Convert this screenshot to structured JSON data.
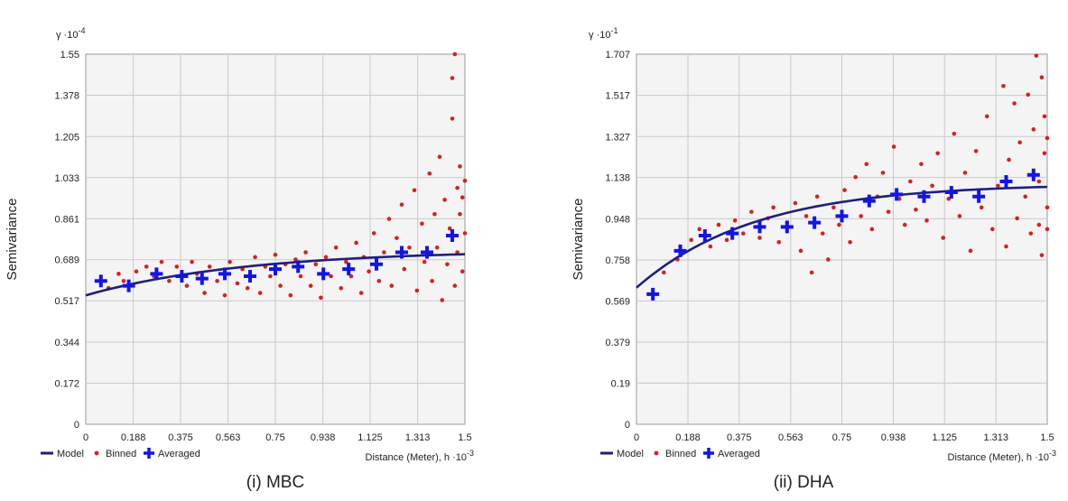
{
  "captions": [
    "(i) MBC",
    "(ii) DHA"
  ],
  "colors": {
    "model": "#1f1f7a",
    "binned": "#d62020",
    "averaged": "#1414e6",
    "plot_bg": "#f4f4f4",
    "grid": "#c9c9c9"
  },
  "chart_data": [
    {
      "type": "scatter",
      "ylabel": "Semivariance",
      "y_multiplier_base": "γ ·10",
      "y_multiplier_exp": "-4",
      "x_multiplier_base": "Distance (Meter), h ·10",
      "x_multiplier_exp": "-3",
      "legend": [
        "Model",
        "Binned",
        "Averaged"
      ],
      "legend_position": "bottom-left",
      "grid": true,
      "xlim": [
        0,
        1.5
      ],
      "ylim": [
        0,
        1.55
      ],
      "xticks": [
        "0",
        "0.188",
        "0.375",
        "0.563",
        "0.75",
        "0.938",
        "1.125",
        "1.313",
        "1.5"
      ],
      "yticks": [
        "0",
        "0.172",
        "0.344",
        "0.517",
        "0.689",
        "0.861",
        "1.033",
        "1.205",
        "1.378",
        "1.55"
      ],
      "model": {
        "nugget": 0.54,
        "sill": 0.73,
        "range": 1.9
      },
      "averaged": [
        [
          0.06,
          0.6
        ],
        [
          0.17,
          0.58
        ],
        [
          0.28,
          0.63
        ],
        [
          0.38,
          0.62
        ],
        [
          0.46,
          0.61
        ],
        [
          0.55,
          0.63
        ],
        [
          0.65,
          0.62
        ],
        [
          0.75,
          0.65
        ],
        [
          0.84,
          0.66
        ],
        [
          0.94,
          0.63
        ],
        [
          1.04,
          0.65
        ],
        [
          1.15,
          0.67
        ],
        [
          1.25,
          0.72
        ],
        [
          1.35,
          0.72
        ],
        [
          1.45,
          0.79
        ]
      ],
      "binned": [
        [
          0.09,
          0.57
        ],
        [
          0.13,
          0.63
        ],
        [
          0.15,
          0.6
        ],
        [
          0.2,
          0.64
        ],
        [
          0.24,
          0.66
        ],
        [
          0.27,
          0.62
        ],
        [
          0.3,
          0.68
        ],
        [
          0.33,
          0.6
        ],
        [
          0.36,
          0.66
        ],
        [
          0.4,
          0.58
        ],
        [
          0.42,
          0.68
        ],
        [
          0.44,
          0.63
        ],
        [
          0.47,
          0.55
        ],
        [
          0.49,
          0.66
        ],
        [
          0.52,
          0.6
        ],
        [
          0.55,
          0.54
        ],
        [
          0.57,
          0.68
        ],
        [
          0.6,
          0.59
        ],
        [
          0.62,
          0.65
        ],
        [
          0.64,
          0.57
        ],
        [
          0.67,
          0.7
        ],
        [
          0.69,
          0.55
        ],
        [
          0.71,
          0.66
        ],
        [
          0.73,
          0.62
        ],
        [
          0.75,
          0.71
        ],
        [
          0.77,
          0.58
        ],
        [
          0.79,
          0.67
        ],
        [
          0.81,
          0.54
        ],
        [
          0.83,
          0.69
        ],
        [
          0.85,
          0.62
        ],
        [
          0.87,
          0.72
        ],
        [
          0.89,
          0.58
        ],
        [
          0.91,
          0.67
        ],
        [
          0.93,
          0.53
        ],
        [
          0.95,
          0.7
        ],
        [
          0.97,
          0.62
        ],
        [
          0.99,
          0.74
        ],
        [
          1.01,
          0.57
        ],
        [
          1.03,
          0.68
        ],
        [
          1.05,
          0.62
        ],
        [
          1.07,
          0.76
        ],
        [
          1.09,
          0.55
        ],
        [
          1.1,
          0.7
        ],
        [
          1.12,
          0.64
        ],
        [
          1.14,
          0.8
        ],
        [
          1.16,
          0.6
        ],
        [
          1.18,
          0.72
        ],
        [
          1.2,
          0.86
        ],
        [
          1.21,
          0.58
        ],
        [
          1.23,
          0.78
        ],
        [
          1.25,
          0.92
        ],
        [
          1.26,
          0.65
        ],
        [
          1.28,
          0.74
        ],
        [
          1.3,
          0.98
        ],
        [
          1.31,
          0.56
        ],
        [
          1.33,
          0.84
        ],
        [
          1.34,
          0.68
        ],
        [
          1.36,
          1.05
        ],
        [
          1.37,
          0.6
        ],
        [
          1.38,
          0.88
        ],
        [
          1.39,
          0.74
        ],
        [
          1.4,
          1.12
        ],
        [
          1.41,
          0.52
        ],
        [
          1.42,
          0.94
        ],
        [
          1.43,
          0.67
        ],
        [
          1.44,
          0.82
        ],
        [
          1.45,
          1.28
        ],
        [
          1.45,
          1.45
        ],
        [
          1.46,
          1.55
        ],
        [
          1.46,
          0.58
        ],
        [
          1.47,
          0.99
        ],
        [
          1.47,
          0.72
        ],
        [
          1.48,
          1.08
        ],
        [
          1.48,
          0.88
        ],
        [
          1.49,
          0.64
        ],
        [
          1.49,
          0.95
        ],
        [
          1.5,
          0.8
        ],
        [
          1.5,
          1.02
        ]
      ]
    },
    {
      "type": "scatter",
      "ylabel": "Semivariance",
      "y_multiplier_base": "γ ·10",
      "y_multiplier_exp": "-1",
      "x_multiplier_base": "Distance (Meter), h ·10",
      "x_multiplier_exp": "-3",
      "legend": [
        "Model",
        "Binned",
        "Averaged"
      ],
      "legend_position": "bottom-left",
      "grid": true,
      "xlim": [
        0,
        1.5
      ],
      "ylim": [
        0,
        1.707
      ],
      "xticks": [
        "0",
        "0.188",
        "0.375",
        "0.563",
        "0.75",
        "0.938",
        "1.125",
        "1.313",
        "1.5"
      ],
      "yticks": [
        "0",
        "0.19",
        "0.379",
        "0.569",
        "0.758",
        "0.948",
        "1.138",
        "1.327",
        "1.517",
        "1.707"
      ],
      "model": {
        "nugget": 0.63,
        "sill": 1.11,
        "range": 1.3
      },
      "averaged": [
        [
          0.06,
          0.6
        ],
        [
          0.16,
          0.8
        ],
        [
          0.25,
          0.87
        ],
        [
          0.35,
          0.88
        ],
        [
          0.45,
          0.91
        ],
        [
          0.55,
          0.91
        ],
        [
          0.65,
          0.93
        ],
        [
          0.75,
          0.96
        ],
        [
          0.85,
          1.03
        ],
        [
          0.95,
          1.06
        ],
        [
          1.05,
          1.05
        ],
        [
          1.15,
          1.07
        ],
        [
          1.25,
          1.05
        ],
        [
          1.35,
          1.12
        ],
        [
          1.45,
          1.15
        ]
      ],
      "binned": [
        [
          0.1,
          0.7
        ],
        [
          0.15,
          0.76
        ],
        [
          0.2,
          0.85
        ],
        [
          0.23,
          0.9
        ],
        [
          0.27,
          0.82
        ],
        [
          0.3,
          0.92
        ],
        [
          0.33,
          0.85
        ],
        [
          0.36,
          0.94
        ],
        [
          0.39,
          0.88
        ],
        [
          0.42,
          0.98
        ],
        [
          0.45,
          0.86
        ],
        [
          0.48,
          0.95
        ],
        [
          0.5,
          1.0
        ],
        [
          0.52,
          0.84
        ],
        [
          0.55,
          0.93
        ],
        [
          0.58,
          1.02
        ],
        [
          0.6,
          0.8
        ],
        [
          0.62,
          0.96
        ],
        [
          0.64,
          0.7
        ],
        [
          0.66,
          1.05
        ],
        [
          0.68,
          0.88
        ],
        [
          0.7,
          0.76
        ],
        [
          0.72,
          1.0
        ],
        [
          0.74,
          0.92
        ],
        [
          0.76,
          1.08
        ],
        [
          0.78,
          0.84
        ],
        [
          0.8,
          1.14
        ],
        [
          0.82,
          0.96
        ],
        [
          0.84,
          1.2
        ],
        [
          0.86,
          0.9
        ],
        [
          0.88,
          1.05
        ],
        [
          0.9,
          1.16
        ],
        [
          0.92,
          0.98
        ],
        [
          0.94,
          1.28
        ],
        [
          0.96,
          1.04
        ],
        [
          0.98,
          0.92
        ],
        [
          1.0,
          1.12
        ],
        [
          1.02,
          0.99
        ],
        [
          1.04,
          1.2
        ],
        [
          1.06,
          0.94
        ],
        [
          1.08,
          1.1
        ],
        [
          1.1,
          1.25
        ],
        [
          1.12,
          0.86
        ],
        [
          1.14,
          1.04
        ],
        [
          1.16,
          1.34
        ],
        [
          1.18,
          0.96
        ],
        [
          1.2,
          1.16
        ],
        [
          1.22,
          0.8
        ],
        [
          1.24,
          1.26
        ],
        [
          1.26,
          1.0
        ],
        [
          1.28,
          1.42
        ],
        [
          1.3,
          0.9
        ],
        [
          1.32,
          1.1
        ],
        [
          1.34,
          1.56
        ],
        [
          1.35,
          0.82
        ],
        [
          1.36,
          1.22
        ],
        [
          1.38,
          1.48
        ],
        [
          1.39,
          0.95
        ],
        [
          1.4,
          1.3
        ],
        [
          1.42,
          1.05
        ],
        [
          1.43,
          1.52
        ],
        [
          1.44,
          0.88
        ],
        [
          1.45,
          1.36
        ],
        [
          1.46,
          1.7
        ],
        [
          1.47,
          1.12
        ],
        [
          1.47,
          0.92
        ],
        [
          1.48,
          1.6
        ],
        [
          1.48,
          0.78
        ],
        [
          1.49,
          1.25
        ],
        [
          1.49,
          1.42
        ],
        [
          1.5,
          1.0
        ],
        [
          1.5,
          1.32
        ],
        [
          1.5,
          0.9
        ]
      ]
    }
  ]
}
